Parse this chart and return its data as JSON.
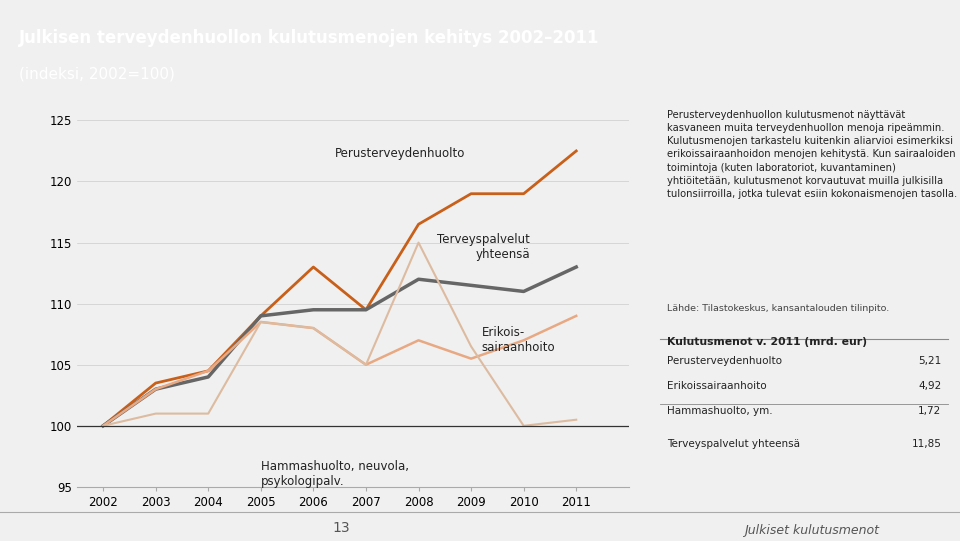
{
  "title_line1": "Julkisen terveydenhuollon kulutusmenojen kehitys 2002–2011",
  "title_line2": "(indeksi, 2002=100)",
  "title_bg_color": "#E8834A",
  "title_text_color": "#ffffff",
  "chart_bg_color": "#f0f0f0",
  "right_panel_bg": "#e0e0e0",
  "years": [
    2002,
    2003,
    2004,
    2005,
    2006,
    2007,
    2008,
    2009,
    2010,
    2011
  ],
  "series": {
    "Perusterveydenhuolto": {
      "values": [
        100,
        103.5,
        104.5,
        109,
        113,
        109.5,
        116.5,
        119,
        119,
        122.5
      ],
      "color": "#C8601A",
      "linewidth": 2.0
    },
    "Terveyspalvelut yhteensä": {
      "values": [
        100,
        103,
        104,
        109,
        109.5,
        109.5,
        112,
        111.5,
        111,
        113
      ],
      "color": "#666666",
      "linewidth": 2.5
    },
    "Erikoissairaanhoito": {
      "values": [
        100,
        103,
        104.5,
        108.5,
        108,
        105,
        107,
        105.5,
        107,
        109
      ],
      "color": "#E8A882",
      "linewidth": 1.8
    },
    "Hammashuolto": {
      "values": [
        100,
        101,
        101,
        108.5,
        108,
        105,
        115,
        106.5,
        100,
        100.5
      ],
      "color": "#DDBBA0",
      "linewidth": 1.5
    }
  },
  "ylim": [
    95,
    126
  ],
  "yticks": [
    95,
    100,
    105,
    110,
    115,
    120,
    125
  ],
  "page_number": "13",
  "footer_text": "Julkiset kulutusmenot",
  "right_text": "Perusterveydenhuollon kulutusmenot näyttävät kasvaneen muita terveydenhuollon menoja ripeämmin. Kulutusmenojen tarkastelu kuitenkin aliarvioi esimerkiksi erikoissairaanhoidon menojen kehitystä. Kun sairaaloiden toimintoja (kuten laboratoriot, kuvantaminen) yhtiöitetään, kulutusmenot korvautuvat muilla julkisilla tulonsiirroilla, jotka tulevat esiin kokonaismenojen tasolla.",
  "source_text": "Lähde: Tilastokeskus, kansantalouden tilinpito.",
  "table_title": "Kulutusmenot v. 2011 (mrd. eur)",
  "table_rows": [
    [
      "Perusterveydenhuolto",
      "5,21"
    ],
    [
      "Erikoissairaanhoito",
      "4,92"
    ],
    [
      "Hammashuolto, ym.",
      "1,72"
    ],
    [
      "Terveyspalvelut yhteensä",
      "11,85"
    ]
  ]
}
